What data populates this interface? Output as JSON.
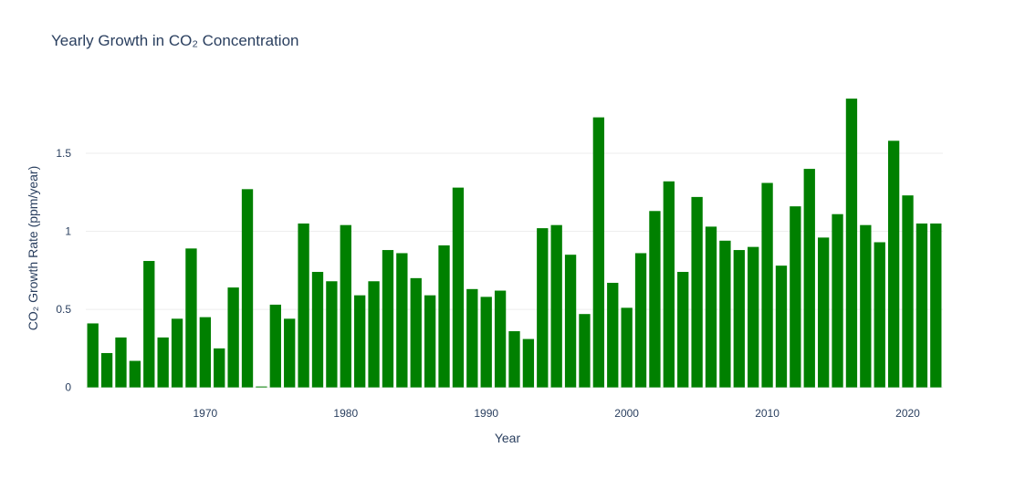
{
  "chart_data": {
    "type": "bar",
    "title": "Yearly Growth in CO₂ Concentration",
    "xlabel": "Year",
    "ylabel": "CO₂ Growth Rate (ppm/year)",
    "x": [
      1962,
      1963,
      1964,
      1965,
      1966,
      1967,
      1968,
      1969,
      1970,
      1971,
      1972,
      1973,
      1974,
      1975,
      1976,
      1977,
      1978,
      1979,
      1980,
      1981,
      1982,
      1983,
      1984,
      1985,
      1986,
      1987,
      1988,
      1989,
      1990,
      1991,
      1992,
      1993,
      1994,
      1995,
      1996,
      1997,
      1998,
      1999,
      2000,
      2001,
      2002,
      2003,
      2004,
      2005,
      2006,
      2007,
      2008,
      2009,
      2010,
      2011,
      2012,
      2013,
      2014,
      2015,
      2016,
      2017,
      2018,
      2019,
      2020,
      2021,
      2022
    ],
    "values": [
      0.41,
      0.22,
      0.32,
      0.17,
      0.81,
      0.32,
      0.44,
      0.89,
      0.45,
      0.25,
      0.64,
      1.27,
      0.0,
      0.53,
      0.44,
      1.05,
      0.74,
      0.68,
      1.04,
      0.59,
      0.68,
      0.88,
      0.86,
      0.7,
      0.59,
      0.91,
      1.28,
      0.63,
      0.58,
      0.62,
      0.36,
      0.31,
      1.02,
      1.04,
      0.85,
      0.47,
      1.73,
      0.67,
      0.51,
      0.86,
      1.13,
      1.32,
      0.74,
      1.22,
      1.03,
      0.94,
      0.88,
      0.9,
      1.31,
      0.78,
      1.16,
      1.4,
      0.96,
      1.11,
      1.85,
      1.04,
      0.93,
      1.58,
      1.23,
      1.05,
      1.05
    ],
    "bar_color": "#008000",
    "xlim": [
      1961.4,
      1962.6
    ],
    "xlim_note": "",
    "x_ticks": [
      1970,
      1980,
      1990,
      2000,
      2010,
      2020
    ],
    "y_ticks": [
      0,
      0.5,
      1,
      1.5
    ],
    "y_tick_labels": [
      "0",
      "0.5",
      "1",
      "1.5"
    ],
    "ylim": [
      -0.09,
      1.95
    ],
    "grid": true,
    "legend": "none"
  }
}
